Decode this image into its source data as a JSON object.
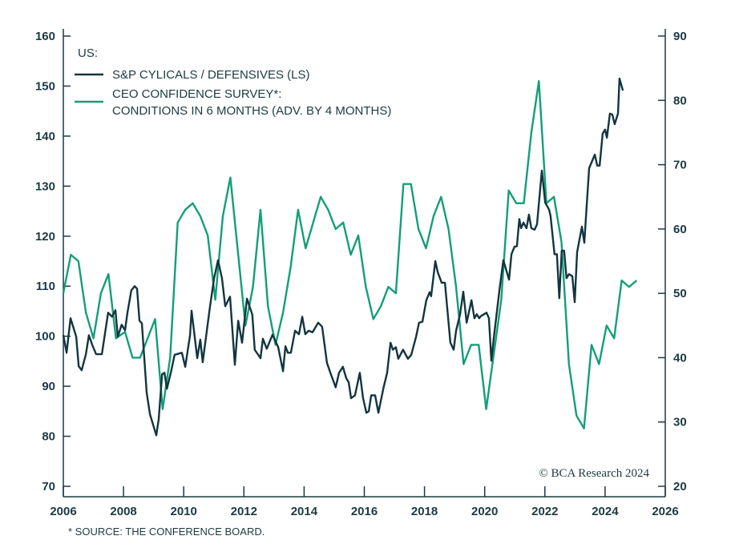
{
  "chart_data": {
    "type": "line",
    "legend_title": "US:",
    "legend_placement": "top-left",
    "grid": false,
    "x_ticks": [
      2006,
      2008,
      2010,
      2012,
      2014,
      2016,
      2018,
      2020,
      2022,
      2024,
      2026
    ],
    "xlim": [
      2006,
      2026
    ],
    "left_axis": {
      "ylim": [
        70,
        160
      ],
      "ticks": [
        70,
        80,
        90,
        100,
        110,
        120,
        130,
        140,
        150,
        160
      ]
    },
    "right_axis": {
      "ylim": [
        20,
        90
      ],
      "ticks": [
        20,
        30,
        40,
        50,
        60,
        70,
        80,
        90
      ]
    },
    "footnote": "* SOURCE: THE CONFERENCE BOARD.",
    "copyright": "© BCA Research 2024",
    "colors": {
      "cyclicals": "#12353f",
      "ceo": "#139e78",
      "axis": "#1b3a42"
    },
    "series": [
      {
        "name": "S&P CYLICALS / DEFENSIVES (LS)",
        "axis": "left",
        "points": [
          [
            2006.0,
            100.2
          ],
          [
            2006.11,
            96.7
          ],
          [
            2006.24,
            103.6
          ],
          [
            2006.43,
            99.9
          ],
          [
            2006.51,
            94.0
          ],
          [
            2006.61,
            93.2
          ],
          [
            2006.75,
            96.4
          ],
          [
            2006.85,
            100.2
          ],
          [
            2006.96,
            98.3
          ],
          [
            2007.09,
            96.4
          ],
          [
            2007.28,
            96.4
          ],
          [
            2007.49,
            104.7
          ],
          [
            2007.62,
            103.9
          ],
          [
            2007.73,
            105.2
          ],
          [
            2007.81,
            99.9
          ],
          [
            2007.94,
            102.3
          ],
          [
            2008.05,
            101.2
          ],
          [
            2008.13,
            104.7
          ],
          [
            2008.26,
            109.2
          ],
          [
            2008.37,
            110.0
          ],
          [
            2008.45,
            109.5
          ],
          [
            2008.53,
            103.1
          ],
          [
            2008.61,
            102.6
          ],
          [
            2008.77,
            88.7
          ],
          [
            2008.88,
            84.4
          ],
          [
            2009.09,
            80.2
          ],
          [
            2009.17,
            83.4
          ],
          [
            2009.28,
            92.4
          ],
          [
            2009.36,
            92.7
          ],
          [
            2009.44,
            89.5
          ],
          [
            2009.57,
            92.7
          ],
          [
            2009.7,
            96.3
          ],
          [
            2009.94,
            96.7
          ],
          [
            2010.05,
            93.9
          ],
          [
            2010.21,
            100.2
          ],
          [
            2010.26,
            105.1
          ],
          [
            2010.45,
            95.6
          ],
          [
            2010.55,
            99.3
          ],
          [
            2010.63,
            94.8
          ],
          [
            2010.87,
            105.8
          ],
          [
            2011.01,
            111.6
          ],
          [
            2011.14,
            115.2
          ],
          [
            2011.27,
            111.6
          ],
          [
            2011.38,
            106.0
          ],
          [
            2011.54,
            107.9
          ],
          [
            2011.7,
            94.3
          ],
          [
            2011.81,
            103.1
          ],
          [
            2011.94,
            98.7
          ],
          [
            2012.1,
            107.5
          ],
          [
            2012.28,
            104.3
          ],
          [
            2012.36,
            97.3
          ],
          [
            2012.55,
            95.6
          ],
          [
            2012.63,
            99.5
          ],
          [
            2012.76,
            97.5
          ],
          [
            2012.95,
            100.3
          ],
          [
            2013.14,
            97.8
          ],
          [
            2013.3,
            93.0
          ],
          [
            2013.38,
            98.0
          ],
          [
            2013.46,
            96.7
          ],
          [
            2013.56,
            96.7
          ],
          [
            2013.7,
            101.1
          ],
          [
            2013.83,
            100.4
          ],
          [
            2013.94,
            103.9
          ],
          [
            2014.04,
            100.4
          ],
          [
            2014.15,
            101.1
          ],
          [
            2014.28,
            100.8
          ],
          [
            2014.47,
            102.7
          ],
          [
            2014.6,
            101.9
          ],
          [
            2014.76,
            94.7
          ],
          [
            2014.89,
            92.4
          ],
          [
            2015.05,
            89.8
          ],
          [
            2015.16,
            92.7
          ],
          [
            2015.29,
            93.9
          ],
          [
            2015.4,
            91.6
          ],
          [
            2015.48,
            90.8
          ],
          [
            2015.56,
            87.6
          ],
          [
            2015.69,
            88.2
          ],
          [
            2015.85,
            92.7
          ],
          [
            2015.96,
            87.6
          ],
          [
            2016.07,
            84.7
          ],
          [
            2016.15,
            85.0
          ],
          [
            2016.23,
            88.2
          ],
          [
            2016.36,
            88.2
          ],
          [
            2016.47,
            84.7
          ],
          [
            2016.63,
            89.5
          ],
          [
            2016.76,
            92.7
          ],
          [
            2016.87,
            98.7
          ],
          [
            2016.95,
            97.3
          ],
          [
            2017.05,
            97.8
          ],
          [
            2017.13,
            95.5
          ],
          [
            2017.29,
            97.3
          ],
          [
            2017.45,
            95.5
          ],
          [
            2017.56,
            96.3
          ],
          [
            2017.72,
            99.9
          ],
          [
            2017.82,
            102.7
          ],
          [
            2017.93,
            102.9
          ],
          [
            2018.06,
            107.2
          ],
          [
            2018.17,
            108.8
          ],
          [
            2018.22,
            108.0
          ],
          [
            2018.36,
            115.0
          ],
          [
            2018.44,
            112.8
          ],
          [
            2018.57,
            110.7
          ],
          [
            2018.68,
            110.7
          ],
          [
            2018.86,
            98.7
          ],
          [
            2018.97,
            97.3
          ],
          [
            2019.05,
            101.1
          ],
          [
            2019.18,
            104.3
          ],
          [
            2019.29,
            108.9
          ],
          [
            2019.4,
            102.7
          ],
          [
            2019.56,
            107.2
          ],
          [
            2019.66,
            103.6
          ],
          [
            2019.74,
            104.4
          ],
          [
            2019.82,
            103.6
          ],
          [
            2019.87,
            104.0
          ],
          [
            2020.06,
            104.7
          ],
          [
            2020.14,
            103.6
          ],
          [
            2020.22,
            95.1
          ],
          [
            2020.3,
            99.6
          ],
          [
            2020.49,
            109.2
          ],
          [
            2020.62,
            115.2
          ],
          [
            2020.81,
            111.3
          ],
          [
            2020.89,
            116.4
          ],
          [
            2020.99,
            117.9
          ],
          [
            2021.07,
            118.0
          ],
          [
            2021.15,
            123.4
          ],
          [
            2021.21,
            121.6
          ],
          [
            2021.29,
            122.7
          ],
          [
            2021.39,
            121.6
          ],
          [
            2021.47,
            124.3
          ],
          [
            2021.55,
            121.6
          ],
          [
            2021.66,
            121.3
          ],
          [
            2021.74,
            122.4
          ],
          [
            2021.9,
            133.1
          ],
          [
            2022.01,
            126.7
          ],
          [
            2022.14,
            125.3
          ],
          [
            2022.19,
            124.0
          ],
          [
            2022.32,
            116.4
          ],
          [
            2022.4,
            116.4
          ],
          [
            2022.48,
            107.6
          ],
          [
            2022.56,
            117.1
          ],
          [
            2022.64,
            117.1
          ],
          [
            2022.72,
            111.6
          ],
          [
            2022.8,
            112.4
          ],
          [
            2022.91,
            112.0
          ],
          [
            2022.99,
            106.8
          ],
          [
            2023.07,
            116.8
          ],
          [
            2023.23,
            121.9
          ],
          [
            2023.31,
            118.7
          ],
          [
            2023.47,
            133.6
          ],
          [
            2023.66,
            136.3
          ],
          [
            2023.74,
            134.1
          ],
          [
            2023.82,
            134.1
          ],
          [
            2023.92,
            140.5
          ],
          [
            2024.0,
            141.3
          ],
          [
            2024.06,
            139.7
          ],
          [
            2024.16,
            144.5
          ],
          [
            2024.24,
            144.3
          ],
          [
            2024.32,
            142.4
          ],
          [
            2024.43,
            144.5
          ],
          [
            2024.48,
            151.5
          ],
          [
            2024.59,
            149.1
          ]
        ]
      },
      {
        "name": "CEO CONFIDENCE SURVEY*:",
        "name_line2": "CONDITIONS IN 6 MONTHS (ADV. BY 4 MONTHS)",
        "axis": "right",
        "points": [
          [
            2006.0,
            50
          ],
          [
            2006.25,
            56
          ],
          [
            2006.5,
            55
          ],
          [
            2006.75,
            47
          ],
          [
            2007.0,
            43
          ],
          [
            2007.25,
            50
          ],
          [
            2007.5,
            53
          ],
          [
            2007.75,
            43
          ],
          [
            2008.05,
            44
          ],
          [
            2008.3,
            40
          ],
          [
            2008.55,
            40
          ],
          [
            2009.05,
            46
          ],
          [
            2009.3,
            32
          ],
          [
            2009.55,
            40
          ],
          [
            2009.8,
            61
          ],
          [
            2010.05,
            63
          ],
          [
            2010.3,
            64
          ],
          [
            2010.55,
            62
          ],
          [
            2010.8,
            59
          ],
          [
            2011.05,
            49
          ],
          [
            2011.3,
            62
          ],
          [
            2011.55,
            68
          ],
          [
            2012.05,
            45
          ],
          [
            2012.3,
            51
          ],
          [
            2012.55,
            63
          ],
          [
            2012.8,
            48
          ],
          [
            2013.05,
            42
          ],
          [
            2013.3,
            47
          ],
          [
            2013.55,
            54
          ],
          [
            2013.8,
            63
          ],
          [
            2014.05,
            57
          ],
          [
            2014.55,
            65
          ],
          [
            2014.8,
            63
          ],
          [
            2015.05,
            60
          ],
          [
            2015.3,
            61
          ],
          [
            2015.55,
            56
          ],
          [
            2015.8,
            59
          ],
          [
            2016.05,
            51
          ],
          [
            2016.3,
            46
          ],
          [
            2016.55,
            48
          ],
          [
            2016.8,
            51
          ],
          [
            2017.05,
            50
          ],
          [
            2017.3,
            67
          ],
          [
            2017.55,
            67
          ],
          [
            2017.8,
            60
          ],
          [
            2018.05,
            57
          ],
          [
            2018.3,
            62
          ],
          [
            2018.55,
            65
          ],
          [
            2018.8,
            60
          ],
          [
            2019.05,
            51
          ],
          [
            2019.3,
            39
          ],
          [
            2019.55,
            42
          ],
          [
            2019.8,
            42
          ],
          [
            2020.05,
            32
          ],
          [
            2020.55,
            49
          ],
          [
            2020.8,
            66
          ],
          [
            2021.05,
            64
          ],
          [
            2021.3,
            64
          ],
          [
            2021.55,
            75
          ],
          [
            2021.8,
            83
          ],
          [
            2022.05,
            64
          ],
          [
            2022.3,
            65
          ],
          [
            2022.55,
            58
          ],
          [
            2022.8,
            39
          ],
          [
            2023.05,
            31
          ],
          [
            2023.3,
            29
          ],
          [
            2023.55,
            42
          ],
          [
            2023.8,
            39
          ],
          [
            2024.05,
            45
          ],
          [
            2024.3,
            43
          ],
          [
            2024.55,
            52
          ],
          [
            2024.8,
            51
          ],
          [
            2025.05,
            52
          ]
        ]
      }
    ]
  }
}
